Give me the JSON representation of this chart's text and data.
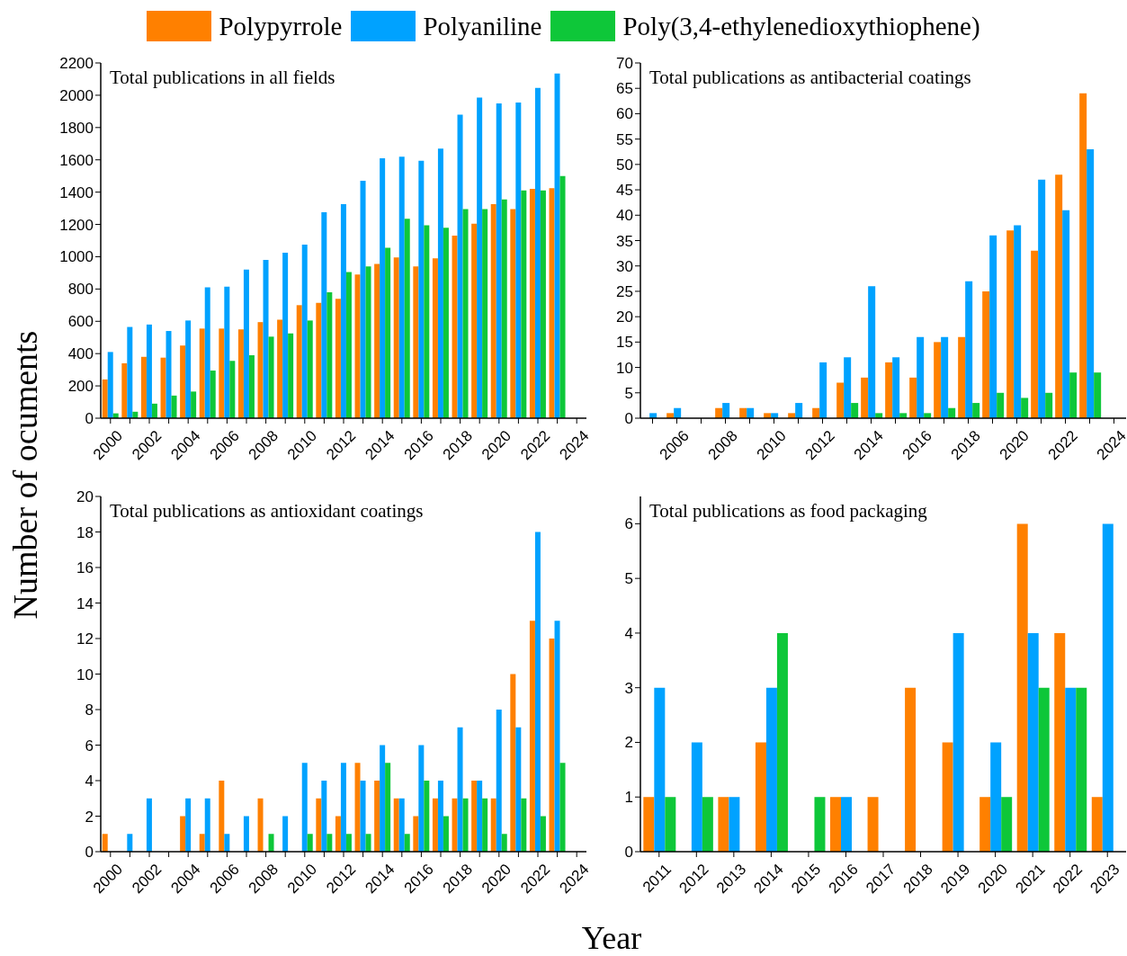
{
  "chart_data": [
    {
      "type": "bar",
      "title": "Total publications in all fields",
      "ylabel": "Number of ocuments",
      "legend": "top",
      "categories": [
        "2000",
        null,
        "2002",
        null,
        "2004",
        null,
        "2006",
        null,
        "2008",
        null,
        "2010",
        null,
        "2012",
        null,
        "2014",
        null,
        "2016",
        null,
        "2018",
        null,
        "2020",
        null,
        "2022",
        null,
        "2024"
      ],
      "series": [
        {
          "name": "Polypyrrole",
          "color": "#ff8000",
          "values": [
            240,
            340,
            380,
            375,
            450,
            555,
            555,
            550,
            595,
            610,
            700,
            715,
            740,
            890,
            955,
            995,
            940,
            990,
            1130,
            1205,
            1325,
            1295,
            1420,
            1425,
            null
          ]
        },
        {
          "name": "Polyaniline",
          "color": "#00a2ff",
          "values": [
            410,
            565,
            580,
            540,
            605,
            810,
            815,
            920,
            980,
            1025,
            1075,
            1275,
            1325,
            1470,
            1610,
            1620,
            1595,
            1670,
            1880,
            1985,
            1950,
            1955,
            2045,
            2135,
            null
          ]
        },
        {
          "name": "Poly(3,4-ethylenedioxythiophene)",
          "color": "#0ec739",
          "values": [
            30,
            40,
            90,
            140,
            165,
            295,
            355,
            390,
            505,
            525,
            605,
            780,
            905,
            940,
            1055,
            1235,
            1195,
            1180,
            1295,
            1295,
            1355,
            1410,
            1410,
            1500,
            null
          ]
        }
      ],
      "ylim": [
        0,
        2200
      ],
      "yticks": [
        0,
        200,
        400,
        600,
        800,
        1000,
        1200,
        1400,
        1600,
        1800,
        2000,
        2200
      ]
    },
    {
      "type": "bar",
      "title": "Total publications as antibacterial coatings",
      "categories": [
        null,
        "2006",
        null,
        "2008",
        null,
        "2010",
        null,
        "2012",
        null,
        "2014",
        null,
        "2016",
        null,
        "2018",
        null,
        "2020",
        null,
        "2022",
        null,
        "2024"
      ],
      "series": [
        {
          "color": "#ff8000",
          "values": [
            0,
            1,
            0,
            2,
            2,
            1,
            1,
            2,
            7,
            8,
            11,
            8,
            15,
            16,
            25,
            37,
            33,
            48,
            64,
            null
          ]
        },
        {
          "color": "#00a2ff",
          "values": [
            1,
            2,
            0,
            3,
            2,
            1,
            3,
            11,
            12,
            26,
            12,
            16,
            16,
            27,
            36,
            38,
            47,
            41,
            53,
            null
          ]
        },
        {
          "color": "#0ec739",
          "values": [
            0,
            0,
            0,
            0,
            0,
            0,
            0,
            0,
            3,
            1,
            1,
            1,
            2,
            3,
            5,
            4,
            5,
            9,
            9,
            null
          ]
        }
      ],
      "ylim": [
        0,
        70
      ],
      "yticks": [
        0,
        5,
        10,
        15,
        20,
        25,
        30,
        35,
        40,
        45,
        50,
        55,
        60,
        65,
        70
      ]
    },
    {
      "type": "bar",
      "title": "Total publications as antioxidant coatings",
      "xlabel": "Year",
      "categories": [
        "2000",
        null,
        "2002",
        null,
        "2004",
        null,
        "2006",
        null,
        "2008",
        null,
        "2010",
        null,
        "2012",
        null,
        "2014",
        null,
        "2016",
        null,
        "2018",
        null,
        "2020",
        null,
        "2022",
        null,
        "2024"
      ],
      "series": [
        {
          "color": "#ff8000",
          "values": [
            1,
            0,
            0,
            0,
            2,
            1,
            4,
            0,
            3,
            0,
            0,
            3,
            2,
            5,
            4,
            3,
            2,
            3,
            3,
            4,
            3,
            10,
            13,
            12,
            null
          ]
        },
        {
          "color": "#00a2ff",
          "values": [
            0,
            1,
            3,
            0,
            3,
            3,
            1,
            2,
            0,
            2,
            5,
            4,
            5,
            4,
            6,
            3,
            6,
            4,
            7,
            4,
            8,
            7,
            18,
            13,
            null
          ]
        },
        {
          "color": "#0ec739",
          "values": [
            0,
            0,
            0,
            0,
            0,
            0,
            0,
            0,
            1,
            0,
            1,
            1,
            1,
            1,
            5,
            1,
            4,
            2,
            3,
            3,
            1,
            3,
            2,
            5,
            null
          ]
        }
      ],
      "ylim": [
        0,
        20
      ],
      "yticks": [
        0,
        2,
        4,
        6,
        8,
        10,
        12,
        14,
        16,
        18,
        20
      ]
    },
    {
      "type": "bar",
      "title": "Total publications as food packaging",
      "categories": [
        "2011",
        "2012",
        "2013",
        "2014",
        "2015",
        "2016",
        "2017",
        "2018",
        "2019",
        "2020",
        "2021",
        "2022",
        "2023"
      ],
      "series": [
        {
          "color": "#ff8000",
          "values": [
            1,
            0,
            1,
            2,
            0,
            1,
            1,
            3,
            2,
            1,
            6,
            4,
            1
          ]
        },
        {
          "color": "#00a2ff",
          "values": [
            3,
            2,
            1,
            3,
            0,
            1,
            0,
            0,
            4,
            2,
            4,
            3,
            6
          ]
        },
        {
          "color": "#0ec739",
          "values": [
            1,
            1,
            0,
            4,
            1,
            0,
            0,
            0,
            0,
            1,
            3,
            3,
            0
          ]
        }
      ],
      "ylim": [
        0,
        6.5
      ],
      "yticks": [
        0,
        1,
        2,
        3,
        4,
        5,
        6
      ]
    }
  ]
}
